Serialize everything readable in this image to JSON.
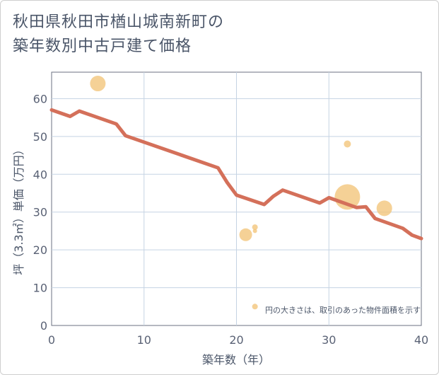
{
  "title": {
    "line1": "秋田県秋田市楢山城南新町の",
    "line2": "築年数別中古戸建て価格"
  },
  "chart_data": {
    "type": "line",
    "xlabel": "築年数（年）",
    "ylabel": "坪（3.3㎡）単価（万円）",
    "xlim": [
      0,
      40
    ],
    "ylim": [
      0,
      67
    ],
    "x_ticks": [
      0,
      10,
      20,
      30,
      40
    ],
    "y_ticks": [
      0,
      10,
      20,
      30,
      40,
      50,
      60
    ],
    "grid": true,
    "note": "円の大きさは、取引のあった物件面積を示す",
    "series": [
      {
        "name": "trend",
        "color": "#d4705a",
        "x": [
          0,
          2,
          3,
          7,
          8,
          18,
          19,
          20,
          23,
          24,
          25,
          29,
          30,
          33,
          34,
          35,
          38,
          39,
          40
        ],
        "y": [
          57,
          55.3,
          56.7,
          53.3,
          50.2,
          41.7,
          37.8,
          34.5,
          32,
          34.2,
          35.8,
          32.4,
          33.8,
          31.2,
          31.4,
          28.3,
          25.7,
          23.9,
          23
        ]
      }
    ],
    "scatter": {
      "name": "transactions",
      "color": "#f2c57c",
      "points": [
        {
          "x": 5,
          "y": 64,
          "size": 11
        },
        {
          "x": 21,
          "y": 24,
          "size": 9
        },
        {
          "x": 22,
          "y": 26,
          "size": 4
        },
        {
          "x": 22,
          "y": 25,
          "size": 3
        },
        {
          "x": 22,
          "y": 5,
          "size": 4
        },
        {
          "x": 32,
          "y": 48,
          "size": 5
        },
        {
          "x": 32,
          "y": 34,
          "size": 18
        },
        {
          "x": 36,
          "y": 31,
          "size": 11
        }
      ]
    }
  }
}
